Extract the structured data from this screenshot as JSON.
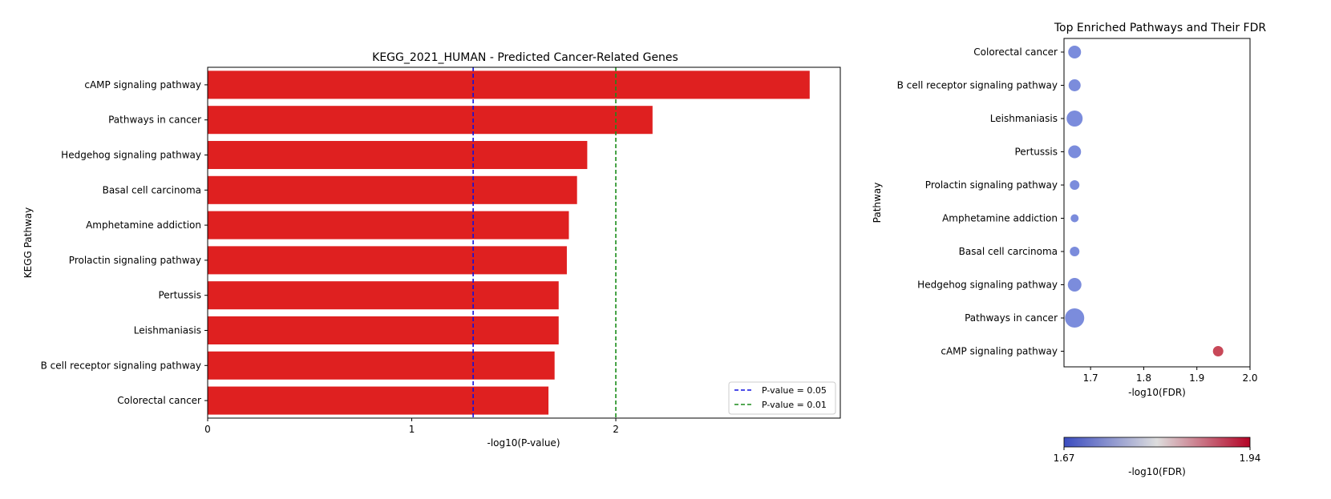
{
  "chart_data": [
    {
      "type": "bar",
      "orientation": "horizontal",
      "title": "KEGG_2021_HUMAN - Predicted Cancer-Related Genes",
      "xlabel": "-log10(P-value)",
      "ylabel": "KEGG Pathway",
      "xlim": [
        0,
        3.1
      ],
      "xticks": [
        0,
        1,
        2
      ],
      "categories": [
        "cAMP signaling pathway",
        "Pathways in cancer",
        "Hedgehog signaling pathway",
        "Basal cell carcinoma",
        "Amphetamine addiction",
        "Prolactin signaling pathway",
        "Pertussis",
        "Leishmaniasis",
        "B cell receptor signaling pathway",
        "Colorectal cancer"
      ],
      "values": [
        2.95,
        2.18,
        1.86,
        1.81,
        1.77,
        1.76,
        1.72,
        1.72,
        1.7,
        1.67
      ],
      "bar_color": "#df2020",
      "reference_lines": [
        {
          "value": 1.301,
          "label": "P-value = 0.05",
          "color": "#1010e0"
        },
        {
          "value": 2.0,
          "label": "P-value = 0.01",
          "color": "#1a8c1a"
        }
      ],
      "legend_position": "lower-right"
    },
    {
      "type": "scatter",
      "title": "Top Enriched Pathways and Their FDR",
      "xlabel": "-log10(FDR)",
      "ylabel": "Pathway",
      "xlim": [
        1.65,
        2.0
      ],
      "xticks": [
        1.7,
        1.8,
        1.9,
        2.0
      ],
      "xtick_labels": [
        "1.7",
        "1.8",
        "1.9",
        "2.0"
      ],
      "categories": [
        "Colorectal cancer",
        "B cell receptor signaling pathway",
        "Leishmaniasis",
        "Pertussis",
        "Prolactin signaling pathway",
        "Amphetamine addiction",
        "Basal cell carcinoma",
        "Hedgehog signaling pathway",
        "Pathways in cancer",
        "cAMP signaling pathway"
      ],
      "x": [
        1.67,
        1.67,
        1.67,
        1.67,
        1.67,
        1.67,
        1.67,
        1.67,
        1.67,
        1.94
      ],
      "sizes": [
        16,
        15,
        20,
        16,
        12,
        10,
        12,
        17,
        24,
        13
      ],
      "colorbar": {
        "label": "-log10(FDR)",
        "min": 1.67,
        "max": 1.94,
        "min_label": "1.67",
        "max_label": "1.94",
        "colormap": "coolwarm",
        "low_color": "#3b4cc0",
        "mid_color": "#dddddd",
        "high_color": "#b40426",
        "point_low_color": "#7b8cdc",
        "point_high_color": "#c84858"
      }
    }
  ]
}
